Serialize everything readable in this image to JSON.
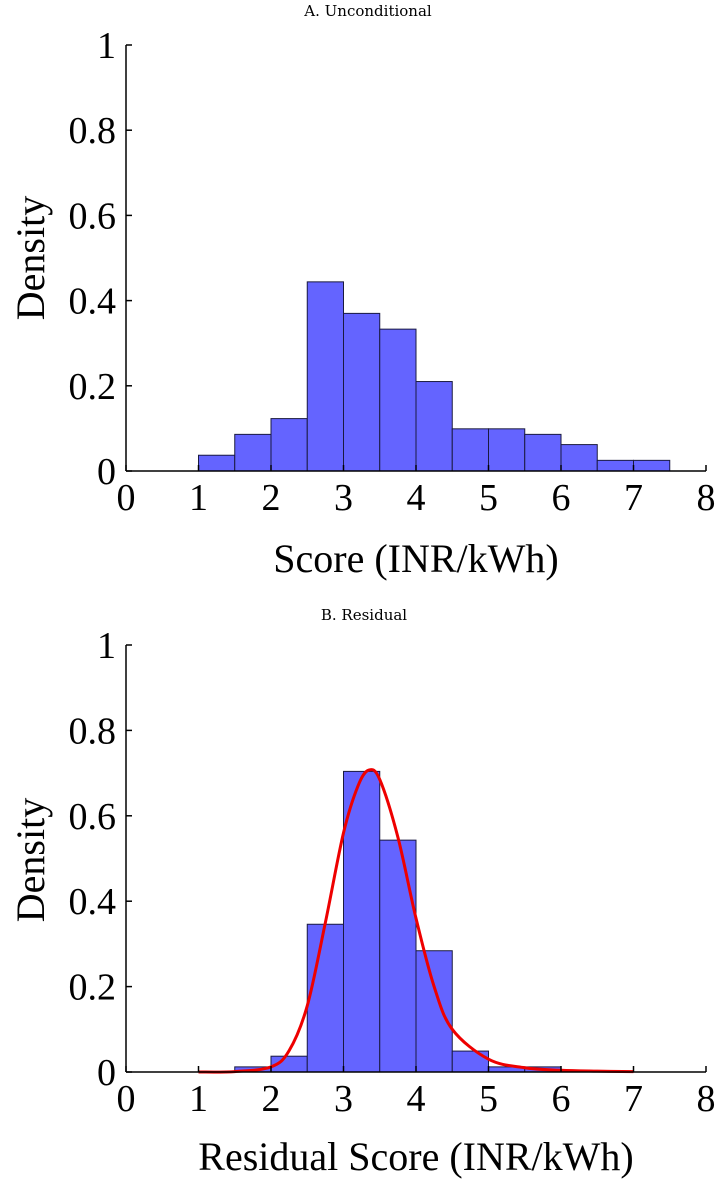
{
  "chart_data": [
    {
      "type": "bar",
      "title": "A. Unconditional",
      "xlabel": "Score (INR/kWh)",
      "ylabel": "Density",
      "xlim": [
        0,
        8
      ],
      "ylim": [
        0,
        1
      ],
      "xticks": [
        "0",
        "1",
        "2",
        "3",
        "4",
        "5",
        "6",
        "7",
        "8"
      ],
      "yticks": [
        "0",
        "0.2",
        "0.4",
        "0.6",
        "0.8",
        "1"
      ],
      "bin_width": 0.5,
      "bins": [
        {
          "x0": 0.0,
          "value": 0
        },
        {
          "x0": 0.5,
          "value": 0
        },
        {
          "x0": 1.0,
          "value": 0.037
        },
        {
          "x0": 1.5,
          "value": 0.086
        },
        {
          "x0": 2.0,
          "value": 0.123
        },
        {
          "x0": 2.5,
          "value": 0.444
        },
        {
          "x0": 3.0,
          "value": 0.37
        },
        {
          "x0": 3.5,
          "value": 0.333
        },
        {
          "x0": 4.0,
          "value": 0.21
        },
        {
          "x0": 4.5,
          "value": 0.099
        },
        {
          "x0": 5.0,
          "value": 0.099
        },
        {
          "x0": 5.5,
          "value": 0.086
        },
        {
          "x0": 6.0,
          "value": 0.062
        },
        {
          "x0": 6.5,
          "value": 0.025
        },
        {
          "x0": 7.0,
          "value": 0.025
        },
        {
          "x0": 7.5,
          "value": 0
        }
      ],
      "colors": {
        "bar": "#6464ff",
        "edge": "#1a1a40"
      }
    },
    {
      "type": "bar",
      "title": "B. Residual",
      "xlabel": "Residual Score (INR/kWh)",
      "ylabel": "Density",
      "xlim": [
        0,
        8
      ],
      "ylim": [
        0,
        1
      ],
      "xticks": [
        "0",
        "1",
        "2",
        "3",
        "4",
        "5",
        "6",
        "7",
        "8"
      ],
      "yticks": [
        "0",
        "0.2",
        "0.4",
        "0.6",
        "0.8",
        "1"
      ],
      "bin_width": 0.5,
      "bins": [
        {
          "x0": 0.0,
          "value": 0
        },
        {
          "x0": 0.5,
          "value": 0
        },
        {
          "x0": 1.0,
          "value": 0
        },
        {
          "x0": 1.5,
          "value": 0.012
        },
        {
          "x0": 2.0,
          "value": 0.037
        },
        {
          "x0": 2.5,
          "value": 0.346
        },
        {
          "x0": 3.0,
          "value": 0.704
        },
        {
          "x0": 3.5,
          "value": 0.543
        },
        {
          "x0": 4.0,
          "value": 0.284
        },
        {
          "x0": 4.5,
          "value": 0.049
        },
        {
          "x0": 5.0,
          "value": 0.012
        },
        {
          "x0": 5.5,
          "value": 0.012
        },
        {
          "x0": 6.0,
          "value": 0
        },
        {
          "x0": 6.5,
          "value": 0
        },
        {
          "x0": 7.0,
          "value": 0
        },
        {
          "x0": 7.5,
          "value": 0
        }
      ],
      "fit_curve": {
        "x": [
          1.0,
          1.5,
          2.0,
          2.25,
          2.5,
          2.75,
          3.0,
          3.2,
          3.35,
          3.5,
          3.75,
          4.0,
          4.25,
          4.5,
          5.0,
          5.5,
          6.0,
          6.5,
          7.0
        ],
        "y": [
          0.0,
          0.001,
          0.012,
          0.05,
          0.155,
          0.35,
          0.56,
          0.67,
          0.707,
          0.685,
          0.55,
          0.36,
          0.2,
          0.1,
          0.03,
          0.01,
          0.004,
          0.002,
          0.001
        ]
      },
      "colors": {
        "bar": "#6464ff",
        "edge": "#1a1a40",
        "curve": "#ee0000"
      }
    }
  ]
}
